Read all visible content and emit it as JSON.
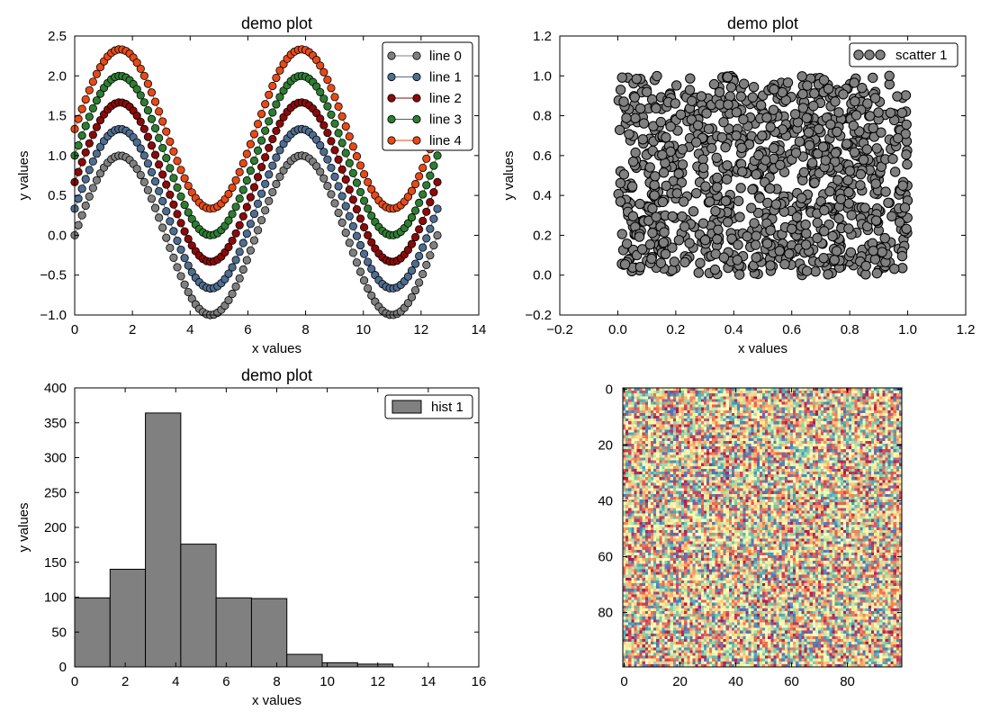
{
  "colors": {
    "line_0": "#808080",
    "line_1": "#4f6d8f",
    "line_2": "#8b0a0a",
    "line_3": "#2e7d32",
    "line_4": "#e64a19",
    "scatter": "#808080",
    "hist": "#808080",
    "edge": "#000000"
  },
  "chart_data": [
    {
      "id": "sine-lines",
      "type": "line",
      "title": "demo plot",
      "xlabel": "x values",
      "ylabel": "y values",
      "xlim": [
        0,
        14
      ],
      "ylim": [
        -1.0,
        2.5
      ],
      "xticks": [
        0,
        2,
        4,
        6,
        8,
        10,
        12,
        14
      ],
      "yticks": [
        -1.0,
        -0.5,
        0.0,
        0.5,
        1.0,
        1.5,
        2.0,
        2.5
      ],
      "ytick_labels": [
        "−1.0",
        "−0.5",
        "0.0",
        "0.5",
        "1.0",
        "1.5",
        "2.0",
        "2.5"
      ],
      "x_range": [
        0,
        12.566
      ],
      "n_points": 100,
      "function": "sin(x) + offset",
      "series": [
        {
          "name": "line 0",
          "offset": 0.0,
          "color_key": "line_0"
        },
        {
          "name": "line 1",
          "offset": 0.333,
          "color_key": "line_1"
        },
        {
          "name": "line 2",
          "offset": 0.667,
          "color_key": "line_2"
        },
        {
          "name": "line 3",
          "offset": 1.0,
          "color_key": "line_3"
        },
        {
          "name": "line 4",
          "offset": 1.333,
          "color_key": "line_4"
        }
      ],
      "legend": "upper right"
    },
    {
      "id": "scatter",
      "type": "scatter",
      "title": "demo plot",
      "xlabel": "x values",
      "ylabel": "y values",
      "xlim": [
        -0.2,
        1.2
      ],
      "ylim": [
        -0.2,
        1.2
      ],
      "xticks": [
        -0.2,
        0.0,
        0.2,
        0.4,
        0.6,
        0.8,
        1.0,
        1.2
      ],
      "xtick_labels": [
        "−0.2",
        "0.0",
        "0.2",
        "0.4",
        "0.6",
        "0.8",
        "1.0",
        "1.2"
      ],
      "yticks": [
        -0.2,
        0.0,
        0.2,
        0.4,
        0.6,
        0.8,
        1.0,
        1.2
      ],
      "ytick_labels": [
        "−0.2",
        "0.0",
        "0.2",
        "0.4",
        "0.6",
        "0.8",
        "1.0",
        "1.2"
      ],
      "series": [
        {
          "name": "scatter 1",
          "n_points": 1000,
          "distribution": "uniform(0,1) x uniform(0,1)"
        }
      ],
      "legend": "upper right"
    },
    {
      "id": "histogram",
      "type": "bar",
      "title": "demo plot",
      "xlabel": "x values",
      "ylabel": "y values",
      "xlim": [
        0,
        16
      ],
      "ylim": [
        0,
        400
      ],
      "xticks": [
        0,
        2,
        4,
        6,
        8,
        10,
        12,
        14,
        16
      ],
      "yticks": [
        0,
        50,
        100,
        150,
        200,
        250,
        300,
        350,
        400
      ],
      "bin_edges": [
        0,
        1.4,
        2.8,
        4.2,
        5.6,
        7.0,
        8.4,
        9.8,
        11.2,
        12.6,
        14.0
      ],
      "values": [
        99,
        140,
        364,
        176,
        99,
        98,
        18,
        6,
        4,
        0
      ],
      "series": [
        {
          "name": "hist 1"
        }
      ],
      "legend": "upper right"
    },
    {
      "id": "image",
      "type": "heatmap",
      "title": "",
      "size": [
        100,
        100
      ],
      "colormap": "Spectral",
      "fill": "random uniform noise",
      "xticks": [
        0,
        20,
        40,
        60,
        80
      ],
      "yticks": [
        0,
        20,
        40,
        60,
        80
      ]
    }
  ]
}
